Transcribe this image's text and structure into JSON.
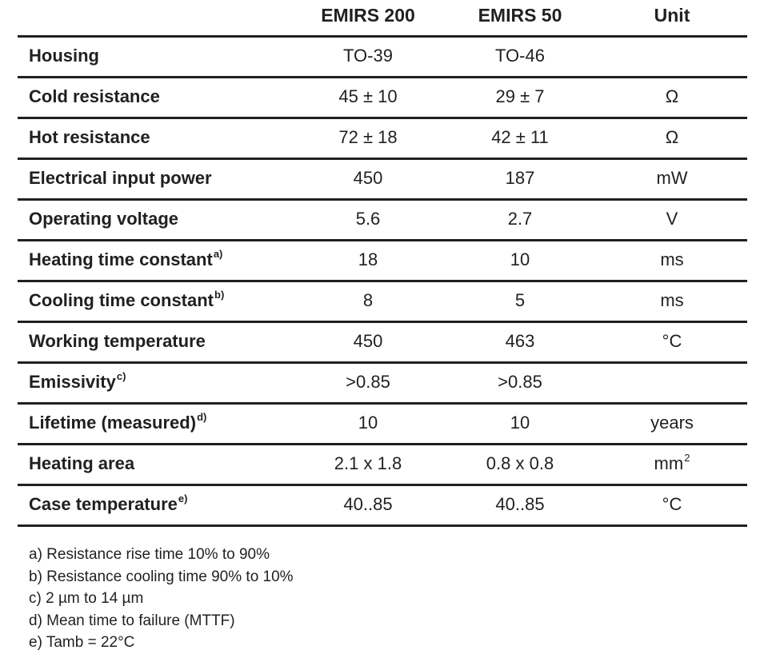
{
  "table": {
    "columns": [
      "",
      "EMIRS 200",
      "EMIRS 50",
      "Unit"
    ],
    "rows": [
      {
        "label": "Housing",
        "sup": "",
        "emirs200": "TO-39",
        "emirs50": "TO-46",
        "unit": "",
        "unit_sup": ""
      },
      {
        "label": "Cold resistance",
        "sup": "",
        "emirs200": "45 ± 10",
        "emirs50": "29 ± 7",
        "unit": "Ω",
        "unit_sup": ""
      },
      {
        "label": "Hot resistance",
        "sup": "",
        "emirs200": "72 ± 18",
        "emirs50": "42 ± 11",
        "unit": "Ω",
        "unit_sup": ""
      },
      {
        "label": "Electrical input power",
        "sup": "",
        "emirs200": "450",
        "emirs50": "187",
        "unit": "mW",
        "unit_sup": ""
      },
      {
        "label": "Operating voltage",
        "sup": "",
        "emirs200": "5.6",
        "emirs50": "2.7",
        "unit": "V",
        "unit_sup": ""
      },
      {
        "label": "Heating time constant",
        "sup": "a)",
        "emirs200": "18",
        "emirs50": "10",
        "unit": "ms",
        "unit_sup": ""
      },
      {
        "label": "Cooling time constant",
        "sup": "b)",
        "emirs200": "8",
        "emirs50": "5",
        "unit": "ms",
        "unit_sup": ""
      },
      {
        "label": "Working temperature",
        "sup": "",
        "emirs200": "450",
        "emirs50": "463",
        "unit": "°C",
        "unit_sup": ""
      },
      {
        "label": "Emissivity",
        "sup": "c)",
        "emirs200": ">0.85",
        "emirs50": ">0.85",
        "unit": "",
        "unit_sup": ""
      },
      {
        "label": "Lifetime (measured)",
        "sup": "d)",
        "emirs200": "10",
        "emirs50": "10",
        "unit": "years",
        "unit_sup": ""
      },
      {
        "label": "Heating area",
        "sup": "",
        "emirs200": "2.1 x 1.8",
        "emirs50": "0.8 x 0.8",
        "unit": "mm",
        "unit_sup": "2"
      },
      {
        "label": "Case temperature",
        "sup": "e)",
        "emirs200": "40..85",
        "emirs50": "40..85",
        "unit": "°C",
        "unit_sup": ""
      }
    ]
  },
  "footnotes": [
    "a) Resistance rise time 10% to 90%",
    "b) Resistance cooling time 90% to 10%",
    "c) 2 µm to 14 µm",
    "d) Mean time to failure (MTTF)",
    "e) Tamb = 22°C"
  ]
}
